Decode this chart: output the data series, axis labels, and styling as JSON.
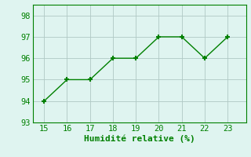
{
  "x": [
    15,
    16,
    17,
    18,
    19,
    20,
    21,
    22,
    23
  ],
  "y": [
    94,
    95,
    95,
    96,
    96,
    97,
    97,
    96,
    97
  ],
  "line_color": "#008000",
  "marker": "+",
  "marker_size": 5,
  "bg_color": "#dff4f0",
  "grid_color": "#b0c8c4",
  "xlabel": "Humidité relative (%)",
  "xlabel_color": "#008000",
  "tick_color": "#008000",
  "spine_color": "#008000",
  "xlim": [
    14.5,
    23.8
  ],
  "ylim": [
    93,
    98.5
  ],
  "xticks": [
    15,
    16,
    17,
    18,
    19,
    20,
    21,
    22,
    23
  ],
  "yticks": [
    93,
    94,
    95,
    96,
    97,
    98
  ],
  "xlabel_fontsize": 8,
  "tick_fontsize": 7.5
}
